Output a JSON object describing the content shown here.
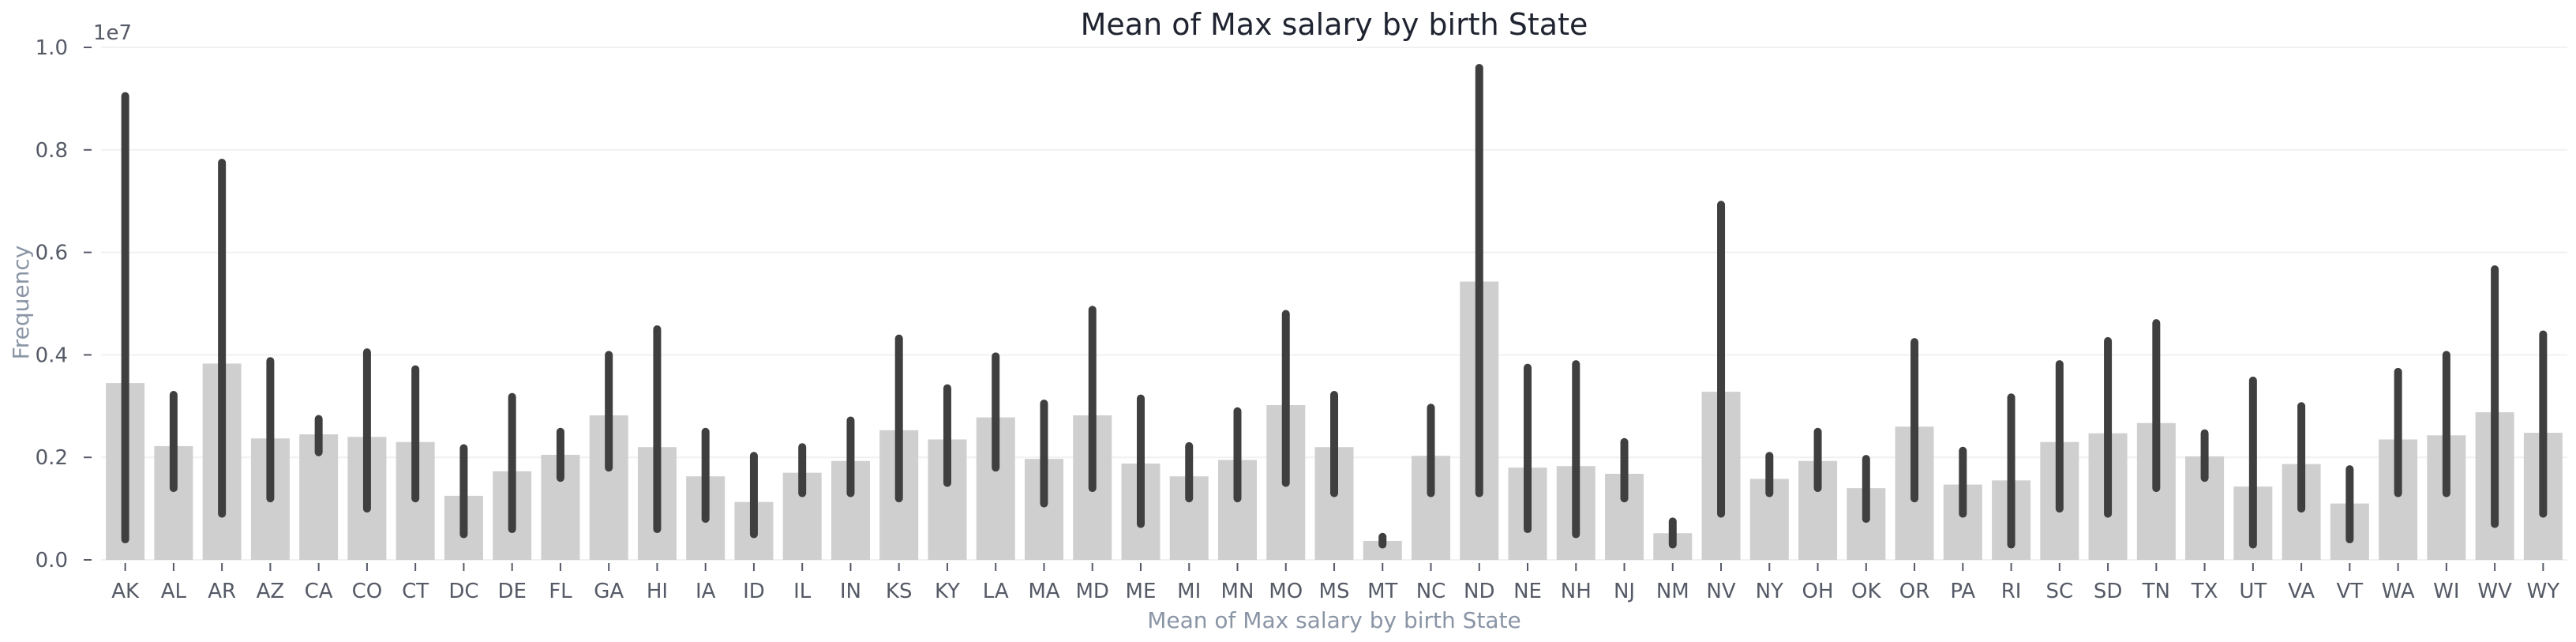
{
  "chart_data": {
    "type": "bar",
    "title": "Mean of Max salary by birth State",
    "xlabel": "Mean of Max salary by birth State",
    "ylabel": "Frequency",
    "y_offset_label": "1e7",
    "ylim": [
      0,
      1.0
    ],
    "yticks": [
      "0.0",
      "0.2",
      "0.4",
      "0.6",
      "0.8",
      "1.0"
    ],
    "grid": "horizontal",
    "categories": [
      "AK",
      "AL",
      "AR",
      "AZ",
      "CA",
      "CO",
      "CT",
      "DC",
      "DE",
      "FL",
      "GA",
      "HI",
      "IA",
      "ID",
      "IL",
      "IN",
      "KS",
      "KY",
      "LA",
      "MA",
      "MD",
      "ME",
      "MI",
      "MN",
      "MO",
      "MS",
      "MT",
      "NC",
      "ND",
      "NE",
      "NH",
      "NJ",
      "NM",
      "NV",
      "NY",
      "OH",
      "OK",
      "OR",
      "PA",
      "RI",
      "SC",
      "SD",
      "TN",
      "TX",
      "UT",
      "VA",
      "VT",
      "WA",
      "WI",
      "WV",
      "WY"
    ],
    "values": [
      0.345,
      0.222,
      0.383,
      0.237,
      0.245,
      0.24,
      0.23,
      0.125,
      0.173,
      0.205,
      0.282,
      0.22,
      0.163,
      0.113,
      0.17,
      0.193,
      0.253,
      0.235,
      0.278,
      0.197,
      0.282,
      0.188,
      0.163,
      0.195,
      0.302,
      0.22,
      0.037,
      0.203,
      0.543,
      0.18,
      0.183,
      0.168,
      0.052,
      0.328,
      0.158,
      0.193,
      0.14,
      0.26,
      0.147,
      0.155,
      0.23,
      0.247,
      0.267,
      0.202,
      0.143,
      0.187,
      0.11,
      0.235,
      0.243,
      0.288,
      0.248
    ],
    "ci_low": [
      0.04,
      0.14,
      0.09,
      0.12,
      0.21,
      0.1,
      0.12,
      0.05,
      0.06,
      0.16,
      0.18,
      0.06,
      0.08,
      0.05,
      0.13,
      0.13,
      0.12,
      0.15,
      0.18,
      0.11,
      0.14,
      0.07,
      0.12,
      0.12,
      0.15,
      0.13,
      0.03,
      0.13,
      0.13,
      0.06,
      0.05,
      0.12,
      0.03,
      0.09,
      0.13,
      0.14,
      0.08,
      0.12,
      0.09,
      0.03,
      0.1,
      0.09,
      0.14,
      0.16,
      0.03,
      0.1,
      0.04,
      0.13,
      0.13,
      0.07,
      0.09
    ],
    "ci_high": [
      0.905,
      0.322,
      0.775,
      0.388,
      0.275,
      0.405,
      0.372,
      0.218,
      0.318,
      0.25,
      0.4,
      0.45,
      0.25,
      0.203,
      0.22,
      0.272,
      0.432,
      0.335,
      0.397,
      0.305,
      0.488,
      0.315,
      0.222,
      0.29,
      0.48,
      0.322,
      0.045,
      0.297,
      0.96,
      0.375,
      0.382,
      0.23,
      0.075,
      0.693,
      0.203,
      0.25,
      0.197,
      0.425,
      0.213,
      0.317,
      0.382,
      0.427,
      0.462,
      0.247,
      0.35,
      0.3,
      0.177,
      0.367,
      0.4,
      0.567,
      0.44
    ]
  }
}
